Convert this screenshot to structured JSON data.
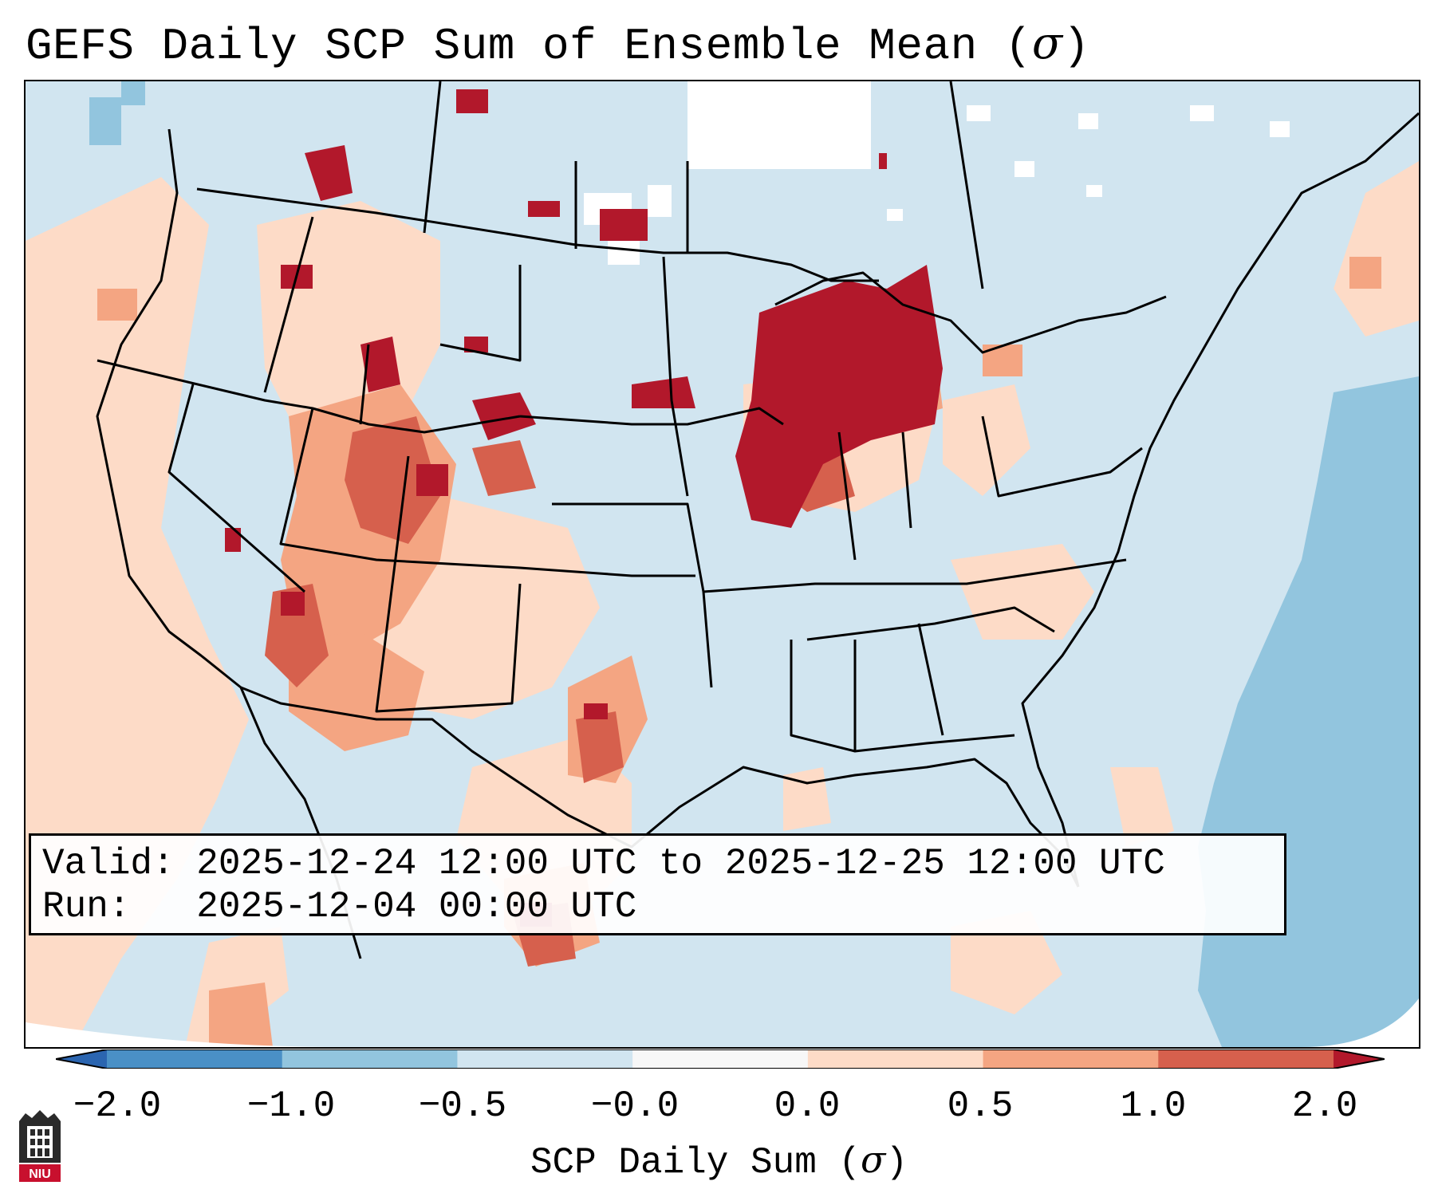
{
  "title": {
    "text": "GEFS Daily SCP Sum of Ensemble Mean (",
    "symbol": "σ",
    "close": ")"
  },
  "info": {
    "valid_label": "Valid:",
    "valid_value": "2025-12-24 12:00 UTC to 2025-12-25 12:00 UTC",
    "run_label": "Run:",
    "run_value": "2025-12-04 00:00 UTC"
  },
  "colorbar": {
    "ticks": [
      "−2.0",
      "−1.0",
      "−0.5",
      "−0.0",
      "0.0",
      "0.5",
      "1.0",
      "2.0"
    ],
    "bins": [
      {
        "range": "< -2.0",
        "color": "#2b65b0"
      },
      {
        "range": "-2.0 to -1.0",
        "color": "#4a90c6"
      },
      {
        "range": "-1.0 to -0.5",
        "color": "#92c5de"
      },
      {
        "range": "-0.5 to 0.0",
        "color": "#d1e5f0"
      },
      {
        "range": "0.0",
        "color": "#f7f7f7"
      },
      {
        "range": "0.0 to 0.5",
        "color": "#fddbc7"
      },
      {
        "range": "0.5 to 1.0",
        "color": "#f4a582"
      },
      {
        "range": "1.0 to 2.0",
        "color": "#d6604d"
      },
      {
        "range": "> 2.0",
        "color": "#b2182b"
      }
    ],
    "label": {
      "text": "SCP Daily Sum (",
      "symbol": "σ",
      "close": ")"
    }
  },
  "logo": {
    "text": "NIU"
  },
  "map": {
    "background": "#d1e5f0",
    "regions": [
      {
        "id": "west-coast",
        "level": "0.0 to 0.5"
      },
      {
        "id": "great-basin",
        "level": "0.5 to 1.0"
      },
      {
        "id": "upper-midwest",
        "level": "> 2.0"
      },
      {
        "id": "central-plains",
        "level": "> 2.0"
      },
      {
        "id": "west-atlantic",
        "level": "-1.0 to -0.5"
      },
      {
        "id": "northern-mexico",
        "level": "1.0 to 2.0"
      }
    ]
  }
}
